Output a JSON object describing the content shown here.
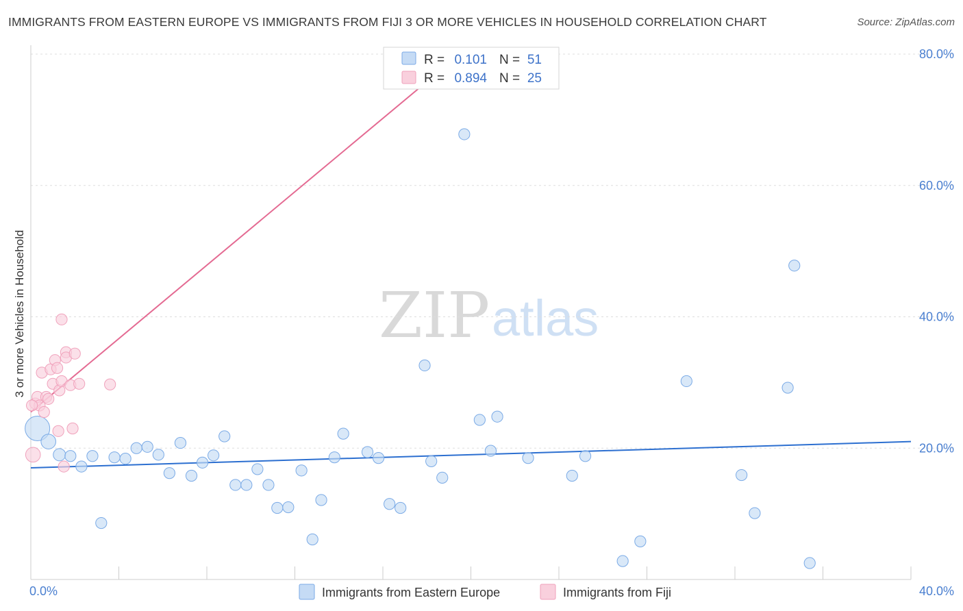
{
  "chart_data": {
    "type": "scatter",
    "title": "IMMIGRANTS FROM EASTERN EUROPE VS IMMIGRANTS FROM FIJI 3 OR MORE VEHICLES IN HOUSEHOLD CORRELATION CHART",
    "source": "Source: ZipAtlas.com",
    "ylabel": "3 or more Vehicles in Household",
    "xlim": [
      0,
      40
    ],
    "ylim": [
      0,
      80
    ],
    "x_tick_labels": [
      "0.0%",
      "40.0%"
    ],
    "y_ticks": [
      20,
      40,
      60,
      80
    ],
    "y_tick_labels": [
      "20.0%",
      "40.0%",
      "60.0%",
      "80.0%"
    ],
    "grid": "horizontal dashed",
    "watermark": {
      "zip": "ZIP",
      "atlas": "atlas"
    },
    "colors": {
      "eastern_europe": "#7aaae6",
      "eastern_europe_fill": "#c5dbf5",
      "eastern_europe_line": "#2c6fd0",
      "fiji": "#f0a1bb",
      "fiji_fill": "#f9d0dd",
      "fiji_line": "#e46a92",
      "tick_text": "#4a7fd0"
    },
    "stats_box": {
      "r_label": "R =",
      "n_label": "N =",
      "rows": [
        {
          "series": "Immigrants from Eastern Europe",
          "r": "0.101",
          "n": "51"
        },
        {
          "series": "Immigrants from Fiji",
          "r": "0.894",
          "n": "25"
        }
      ]
    },
    "series": [
      {
        "name": "Immigrants from Eastern Europe",
        "trend": {
          "x": [
            0,
            40
          ],
          "y": [
            17.0,
            21.0
          ]
        },
        "points": [
          [
            0.3,
            23.0,
            2.0
          ],
          [
            0.8,
            21.0,
            1.2
          ],
          [
            1.3,
            19.0,
            1.0
          ],
          [
            1.8,
            18.8,
            0.9
          ],
          [
            2.3,
            17.2,
            0.9
          ],
          [
            2.8,
            18.8,
            0.9
          ],
          [
            3.2,
            8.6,
            0.9
          ],
          [
            3.8,
            18.6,
            0.9
          ],
          [
            4.3,
            18.4,
            0.9
          ],
          [
            4.8,
            20.0,
            0.9
          ],
          [
            5.3,
            20.2,
            0.9
          ],
          [
            5.8,
            19.0,
            0.9
          ],
          [
            6.3,
            16.2,
            0.9
          ],
          [
            6.8,
            20.8,
            0.9
          ],
          [
            7.3,
            15.8,
            0.9
          ],
          [
            7.8,
            17.8,
            0.9
          ],
          [
            8.3,
            18.9,
            0.9
          ],
          [
            8.8,
            21.8,
            0.9
          ],
          [
            9.3,
            14.4,
            0.9
          ],
          [
            9.8,
            14.4,
            0.9
          ],
          [
            10.3,
            16.8,
            0.9
          ],
          [
            10.8,
            14.4,
            0.9
          ],
          [
            11.2,
            10.9,
            0.9
          ],
          [
            11.7,
            11.0,
            0.9
          ],
          [
            12.3,
            16.6,
            0.9
          ],
          [
            12.8,
            6.1,
            0.9
          ],
          [
            13.2,
            12.1,
            0.9
          ],
          [
            13.8,
            18.6,
            0.9
          ],
          [
            14.2,
            22.2,
            0.9
          ],
          [
            15.3,
            19.4,
            0.9
          ],
          [
            15.8,
            18.5,
            0.9
          ],
          [
            16.3,
            11.5,
            0.9
          ],
          [
            16.8,
            10.9,
            0.9
          ],
          [
            17.9,
            32.6,
            0.9
          ],
          [
            18.2,
            18.0,
            0.9
          ],
          [
            18.7,
            15.5,
            0.9
          ],
          [
            19.7,
            67.8,
            0.9
          ],
          [
            20.4,
            24.3,
            0.9
          ],
          [
            20.9,
            19.6,
            0.9
          ],
          [
            21.2,
            24.8,
            0.9
          ],
          [
            22.6,
            18.5,
            0.9
          ],
          [
            24.6,
            15.8,
            0.9
          ],
          [
            25.2,
            18.8,
            0.9
          ],
          [
            26.9,
            2.8,
            0.9
          ],
          [
            27.7,
            5.8,
            0.9
          ],
          [
            29.8,
            30.2,
            0.9
          ],
          [
            32.3,
            15.9,
            0.9
          ],
          [
            32.9,
            10.1,
            0.9
          ],
          [
            34.4,
            29.2,
            0.9
          ],
          [
            34.7,
            47.8,
            0.9
          ],
          [
            35.4,
            2.5,
            0.9
          ]
        ]
      },
      {
        "name": "Immigrants from Fiji",
        "trend": {
          "x": [
            0,
            19.5
          ],
          "y": [
            25.5,
            80.0
          ]
        },
        "points": [
          [
            0.1,
            19.0,
            1.2
          ],
          [
            0.2,
            26.8,
            0.9
          ],
          [
            0.3,
            27.8,
            0.9
          ],
          [
            0.4,
            26.5,
            0.9
          ],
          [
            0.5,
            31.5,
            0.9
          ],
          [
            0.6,
            25.5,
            0.9
          ],
          [
            0.7,
            27.8,
            0.9
          ],
          [
            0.8,
            27.5,
            0.9
          ],
          [
            0.9,
            32.0,
            0.9
          ],
          [
            1.0,
            29.8,
            0.9
          ],
          [
            1.1,
            33.4,
            0.9
          ],
          [
            1.2,
            32.2,
            0.9
          ],
          [
            1.25,
            22.6,
            0.9
          ],
          [
            1.3,
            28.8,
            0.9
          ],
          [
            1.4,
            30.2,
            0.9
          ],
          [
            1.4,
            39.6,
            0.9
          ],
          [
            1.5,
            17.2,
            0.9
          ],
          [
            1.6,
            34.6,
            0.9
          ],
          [
            1.6,
            33.8,
            0.9
          ],
          [
            1.8,
            29.6,
            0.9
          ],
          [
            1.9,
            23.0,
            0.9
          ],
          [
            2.0,
            34.4,
            0.9
          ],
          [
            2.2,
            29.8,
            0.9
          ],
          [
            3.6,
            29.7,
            0.9
          ],
          [
            0.05,
            26.5,
            0.9
          ]
        ]
      }
    ],
    "legend": [
      "Immigrants from Eastern Europe",
      "Immigrants from Fiji"
    ]
  }
}
